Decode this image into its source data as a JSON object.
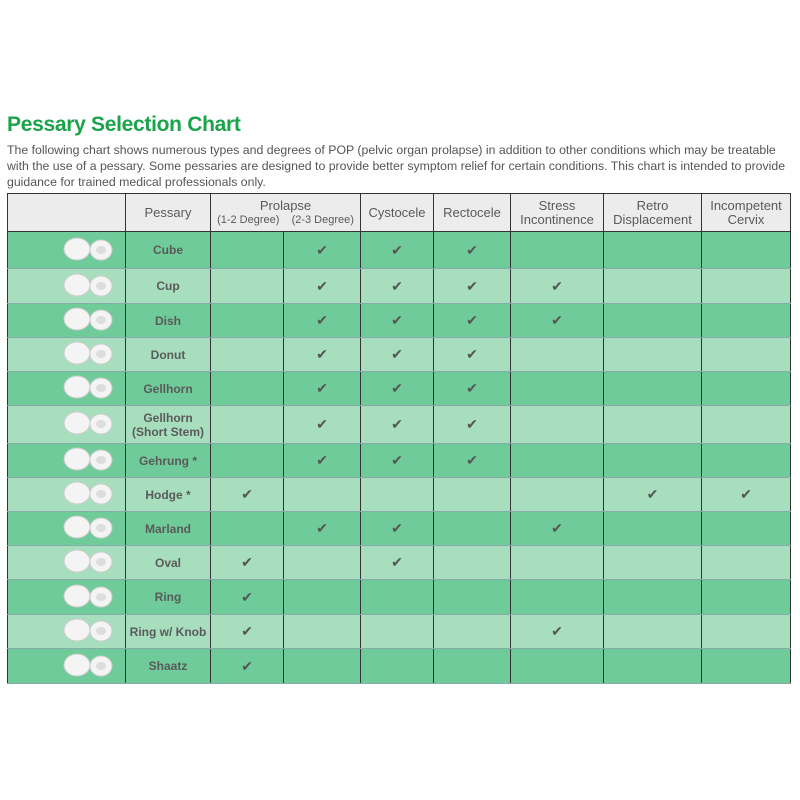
{
  "title": "Pessary Selection Chart",
  "intro": "The following chart shows numerous types and degrees of POP (pelvic organ prolapse) in addition to other conditions which may be treatable with the use of a pessary. Some pessaries are designed to provide better symptom relief for certain conditions. This chart is intended to provide guidance for trained medical professionals only.",
  "headers": {
    "pessary": "Pessary",
    "prolapse": "Prolapse",
    "p12": "(1-2 Degree)",
    "p23": "(2-3 Degree)",
    "cysto": "Cystocele",
    "recto": "Rectocele",
    "stress": "Stress Incontinence",
    "retro": "Retro Displacement",
    "cervix": "Incompetent Cervix"
  },
  "check_glyph": "✔",
  "colors": {
    "title": "#1aa34a",
    "row_dark": "#6fcb99",
    "row_light": "#a7dfbe",
    "header": "#ececec"
  },
  "rows": [
    {
      "name": "Cube",
      "checks": [
        false,
        true,
        true,
        true,
        false,
        false,
        false
      ]
    },
    {
      "name": "Cup",
      "checks": [
        false,
        true,
        true,
        true,
        true,
        false,
        false
      ]
    },
    {
      "name": "Dish",
      "checks": [
        false,
        true,
        true,
        true,
        true,
        false,
        false
      ]
    },
    {
      "name": "Donut",
      "checks": [
        false,
        true,
        true,
        true,
        false,
        false,
        false
      ]
    },
    {
      "name": "Gellhorn",
      "checks": [
        false,
        true,
        true,
        true,
        false,
        false,
        false
      ]
    },
    {
      "name": "Gellhorn (Short Stem)",
      "checks": [
        false,
        true,
        true,
        true,
        false,
        false,
        false
      ]
    },
    {
      "name": "Gehrung *",
      "checks": [
        false,
        true,
        true,
        true,
        false,
        false,
        false
      ]
    },
    {
      "name": "Hodge *",
      "checks": [
        true,
        false,
        false,
        false,
        false,
        true,
        true
      ]
    },
    {
      "name": "Marland",
      "checks": [
        false,
        true,
        true,
        false,
        true,
        false,
        false
      ]
    },
    {
      "name": "Oval",
      "checks": [
        true,
        false,
        true,
        false,
        false,
        false,
        false
      ]
    },
    {
      "name": "Ring",
      "checks": [
        true,
        false,
        false,
        false,
        false,
        false,
        false
      ]
    },
    {
      "name": "Ring w/ Knob",
      "checks": [
        true,
        false,
        false,
        false,
        true,
        false,
        false
      ]
    },
    {
      "name": "Shaatz",
      "checks": [
        true,
        false,
        false,
        false,
        false,
        false,
        false
      ]
    }
  ]
}
